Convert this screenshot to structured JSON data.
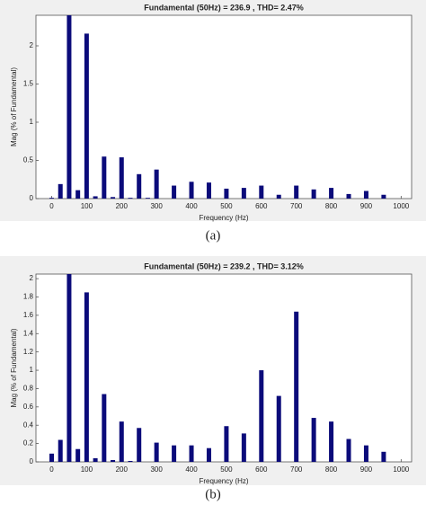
{
  "chart_data": [
    {
      "type": "bar",
      "title": "Fundamental (50Hz) = 236.9 , THD= 2.47%",
      "caption": "(a)",
      "x_label": "Frequency (Hz)",
      "y_label": "Mag (% of Fundamental)",
      "x": [
        0,
        25,
        50,
        75,
        100,
        125,
        150,
        175,
        200,
        225,
        250,
        275,
        300,
        350,
        400,
        450,
        500,
        550,
        600,
        650,
        700,
        750,
        800,
        850,
        900,
        950
      ],
      "values": [
        0.01,
        0.19,
        2.4,
        0.11,
        2.16,
        0.03,
        0.55,
        0.02,
        0.54,
        0.01,
        0.32,
        0.01,
        0.38,
        0.17,
        0.22,
        0.21,
        0.13,
        0.14,
        0.17,
        0.05,
        0.17,
        0.12,
        0.14,
        0.06,
        0.1,
        0.05
      ],
      "color": "#0b0b7a",
      "xlim": [
        -45,
        1030
      ],
      "xticks": [
        0,
        100,
        200,
        300,
        400,
        500,
        600,
        700,
        800,
        900,
        1000
      ],
      "ylim": [
        0,
        2.4
      ],
      "yticks": [
        0,
        0.5,
        1,
        1.5,
        2
      ]
    },
    {
      "type": "bar",
      "title": "Fundamental (50Hz) = 239.2 , THD= 3.12%",
      "caption": "(b)",
      "x_label": "Frequency (Hz)",
      "y_label": "Mag (% of Fundamental)",
      "x": [
        0,
        25,
        50,
        75,
        100,
        125,
        150,
        175,
        200,
        225,
        250,
        300,
        350,
        400,
        450,
        500,
        550,
        600,
        650,
        700,
        750,
        800,
        850,
        900,
        950
      ],
      "values": [
        0.09,
        0.24,
        2.05,
        0.14,
        1.85,
        0.04,
        0.74,
        0.02,
        0.44,
        0.01,
        0.37,
        0.21,
        0.18,
        0.18,
        0.15,
        0.39,
        0.31,
        1.0,
        0.72,
        1.64,
        0.48,
        0.44,
        0.25,
        0.18,
        0.11
      ],
      "color": "#0b0b7a",
      "xlim": [
        -45,
        1030
      ],
      "xticks": [
        0,
        100,
        200,
        300,
        400,
        500,
        600,
        700,
        800,
        900,
        1000
      ],
      "ylim": [
        0,
        2.05
      ],
      "yticks": [
        0,
        0.2,
        0.4,
        0.6,
        0.8,
        1,
        1.2,
        1.4,
        1.6,
        1.8,
        2
      ]
    }
  ]
}
